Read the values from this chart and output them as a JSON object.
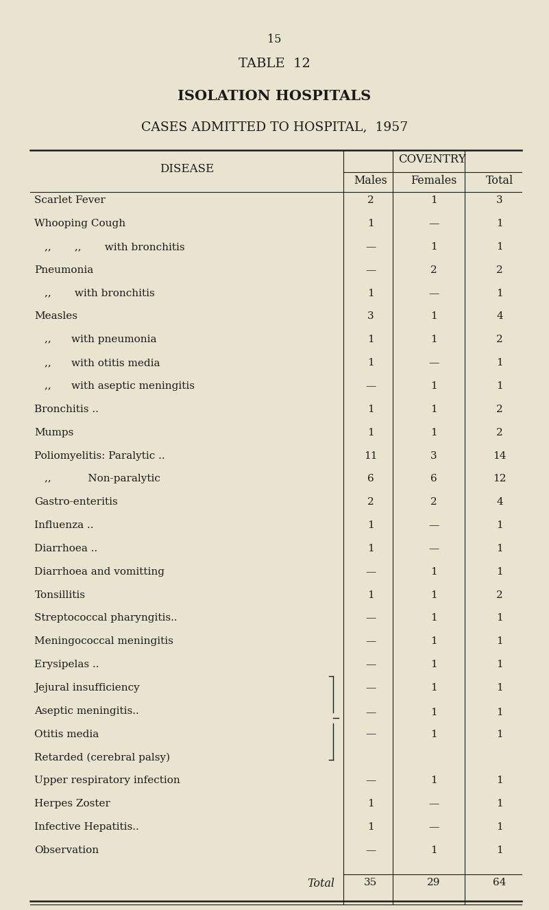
{
  "page_number": "15",
  "title1": "TABLE  12",
  "title2": "ISOLATION HOSPITALS",
  "title3": "CASES ADMITTED TO HOSPITAL,  1957",
  "col_header_main": "COVENTRY",
  "col_header_disease": "DISEASE",
  "col_headers": [
    "Males",
    "Females",
    "Total"
  ],
  "rows": [
    {
      "disease": "Scarlet Fever",
      "dots": "  ..          ..         ..        ...",
      "males": "2",
      "females": "1",
      "total": "3",
      "indent": 0
    },
    {
      "disease": "Whooping Cough",
      "dots": "          ..        ..        ...",
      "males": "1",
      "females": "—",
      "total": "1",
      "indent": 0
    },
    {
      "disease": ",,       ,,       with bronchitis",
      "dots": "  ..",
      "males": "—",
      "females": "1",
      "total": "1",
      "indent": 1
    },
    {
      "disease": "Pneumonia",
      "dots": "               ..        ..         ..        ...",
      "males": "—",
      "females": "2",
      "total": "2",
      "indent": 0
    },
    {
      "disease": ",,       with bronchitis",
      "dots": "        ..        ...",
      "males": "1",
      "females": "—",
      "total": "1",
      "indent": 1
    },
    {
      "disease": "Measles",
      "dots": "   ..        ..          ..         ...",
      "males": "3",
      "females": "1",
      "total": "4",
      "indent": 0
    },
    {
      "disease": ",,      with pneumonia",
      "dots": "         ..        ...",
      "males": "1",
      "females": "1",
      "total": "2",
      "indent": 1
    },
    {
      "disease": ",,      with otitis media",
      "dots": "       ..        ...",
      "males": "1",
      "females": "—",
      "total": "1",
      "indent": 1
    },
    {
      "disease": ",,      with aseptic meningitis",
      "dots": "  ..",
      "males": "—",
      "females": "1",
      "total": "1",
      "indent": 1
    },
    {
      "disease": "Bronchitis ..",
      "dots": "        ..         ..         ...",
      "males": "1",
      "females": "1",
      "total": "2",
      "indent": 0
    },
    {
      "disease": "Mumps",
      "dots": "              ..        ..          ...",
      "males": "1",
      "females": "1",
      "total": "2",
      "indent": 0
    },
    {
      "disease": "Poliomyelitis: Paralytic ..",
      "dots": "        ..        ...",
      "males": "11",
      "females": "3",
      "total": "14",
      "indent": 0
    },
    {
      "disease": ",,           Non-paralytic",
      "dots": "       ..        ...",
      "males": "6",
      "females": "6",
      "total": "12",
      "indent": 1
    },
    {
      "disease": "Gastro-enteritis",
      "dots": "     ..        ..         ..        ...",
      "males": "2",
      "females": "2",
      "total": "4",
      "indent": 0
    },
    {
      "disease": "Influenza ..",
      "dots": "         ..         ..        ...",
      "males": "1",
      "females": "—",
      "total": "1",
      "indent": 0
    },
    {
      "disease": "Diarrhoea ..",
      "dots": "          ..         ..        ...",
      "males": "1",
      "females": "—",
      "total": "1",
      "indent": 0
    },
    {
      "disease": "Diarrhoea and vomitting",
      "dots": "       ..        ...",
      "males": "—",
      "females": "1",
      "total": "1",
      "indent": 0
    },
    {
      "disease": "Tonsillitis",
      "dots": "            ..          ..          ...",
      "males": "1",
      "females": "1",
      "total": "2",
      "indent": 0
    },
    {
      "disease": "Streptococcal pharyngitis..",
      "dots": "      ..        ...",
      "males": "—",
      "females": "1",
      "total": "1",
      "indent": 0
    },
    {
      "disease": "Meningococcal meningitis",
      "dots": "      ..        ...",
      "males": "—",
      "females": "1",
      "total": "1",
      "indent": 0
    },
    {
      "disease": "Erysipelas ..",
      "dots": "          ..          ..        ...",
      "males": "—",
      "females": "1",
      "total": "1",
      "indent": 0
    },
    {
      "disease": "Jejural insufficiency",
      "dots": "",
      "males": "—",
      "females": "1",
      "total": "1",
      "indent": 0,
      "bracket_start": true
    },
    {
      "disease": "Aseptic meningitis..",
      "dots": "",
      "males": "",
      "females": "",
      "total": "",
      "indent": 0,
      "bracket_mid": true
    },
    {
      "disease": "Otitis media",
      "dots": "       ..",
      "males": "—",
      "females": "1",
      "total": "1",
      "indent": 0,
      "bracket_val": true
    },
    {
      "disease": "Retarded (cerebral palsy)",
      "dots": "",
      "males": "",
      "females": "",
      "total": "",
      "indent": 0,
      "bracket_end": true
    },
    {
      "disease": "Upper respiratory infection",
      "dots": "   ..        ...",
      "males": "—",
      "females": "1",
      "total": "1",
      "indent": 0
    },
    {
      "disease": "Herpes Zoster",
      "dots": "       ..        ..          ..        ...",
      "males": "1",
      "females": "—",
      "total": "1",
      "indent": 0
    },
    {
      "disease": "Infective Hepatitis..",
      "dots": "      ..        ..         ...",
      "males": "1",
      "females": "—",
      "total": "1",
      "indent": 0
    },
    {
      "disease": "Observation",
      "dots": "           ..         ..        ...",
      "males": "—",
      "females": "1",
      "total": "1",
      "indent": 0
    }
  ],
  "total_row": {
    "label": "Total",
    "males": "35",
    "females": "29",
    "total": "64"
  },
  "bg_color": "#e8e4d0",
  "text_color": "#1a1a1a",
  "font_size": 11.5,
  "title_font_size": 14
}
